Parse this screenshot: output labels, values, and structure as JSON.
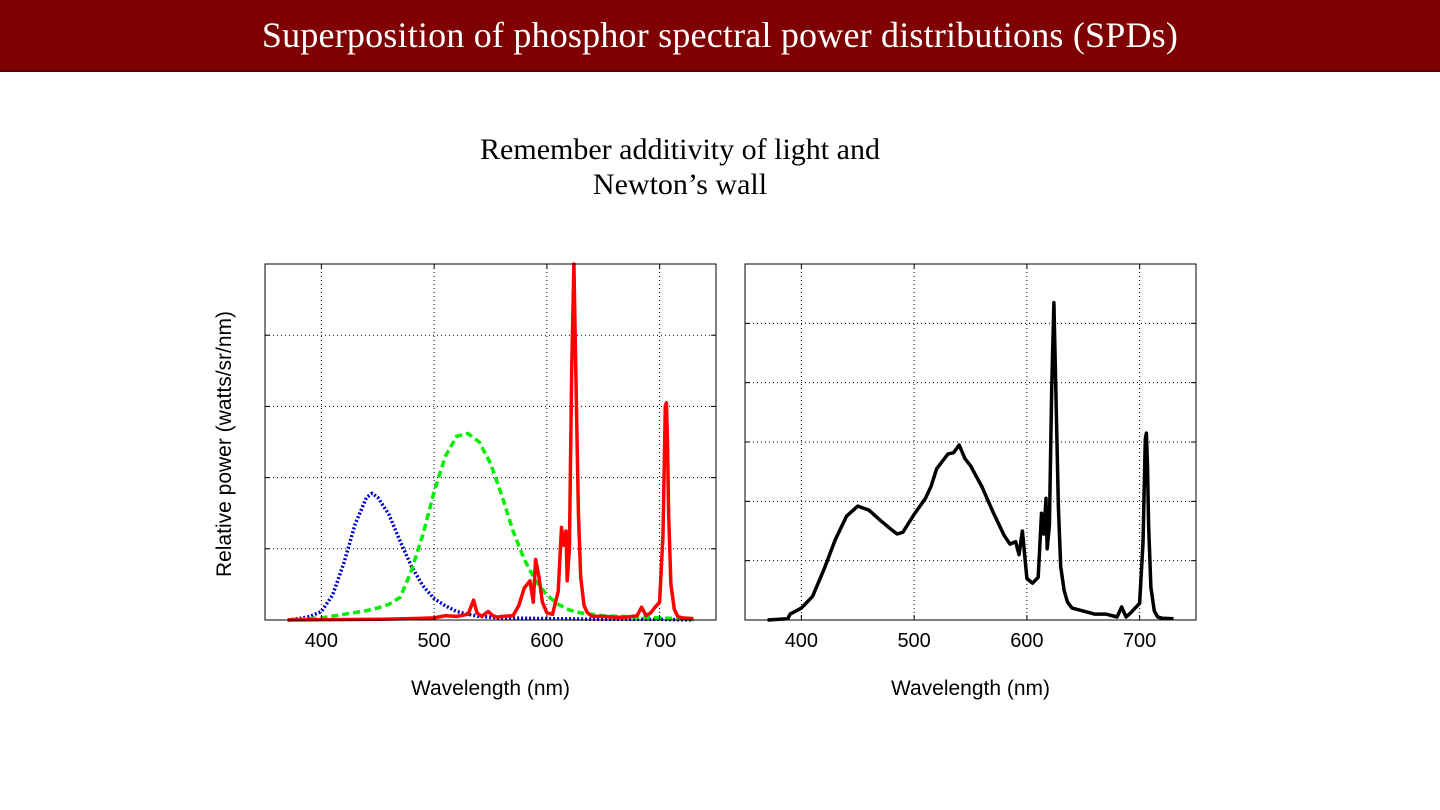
{
  "slide": {
    "title": "Superposition of phosphor spectral power distributions (SPDs)",
    "subtitle_lines": [
      "Remember additivity of light and",
      "Newton’s wall"
    ],
    "accent_color": "#7f0000"
  },
  "chart_data": [
    {
      "type": "line",
      "xlabel": "Wavelength (nm)",
      "ylabel": "Relative power (watts/sr/nm)",
      "xlim": [
        350,
        750
      ],
      "ylim": [
        0,
        5
      ],
      "xticks": [
        400,
        500,
        600,
        700
      ],
      "yticks": [
        1,
        2,
        3,
        4
      ],
      "show_ytick_labels": false,
      "grid": true,
      "series": [
        {
          "color": "#0000cc",
          "style": "dotted",
          "x": [
            370,
            380,
            390,
            400,
            410,
            420,
            430,
            440,
            445,
            450,
            460,
            470,
            480,
            490,
            500,
            510,
            520,
            530,
            540,
            560,
            600,
            650,
            700,
            730
          ],
          "y": [
            0.0,
            0.02,
            0.05,
            0.12,
            0.35,
            0.8,
            1.35,
            1.72,
            1.78,
            1.72,
            1.48,
            1.1,
            0.75,
            0.48,
            0.3,
            0.2,
            0.12,
            0.08,
            0.05,
            0.03,
            0.02,
            0.01,
            0.01,
            0.0
          ]
        },
        {
          "color": "#00ee00",
          "style": "dashed",
          "x": [
            370,
            400,
            420,
            440,
            450,
            460,
            470,
            480,
            490,
            500,
            510,
            520,
            530,
            540,
            550,
            560,
            570,
            580,
            590,
            600,
            610,
            620,
            630,
            650,
            700,
            730
          ],
          "y": [
            0.0,
            0.03,
            0.08,
            0.13,
            0.17,
            0.22,
            0.32,
            0.7,
            1.2,
            1.8,
            2.3,
            2.58,
            2.62,
            2.5,
            2.2,
            1.75,
            1.25,
            0.85,
            0.55,
            0.35,
            0.22,
            0.14,
            0.1,
            0.06,
            0.03,
            0.01
          ]
        },
        {
          "color": "#ff0000",
          "style": "solid",
          "x": [
            370,
            450,
            480,
            500,
            510,
            520,
            530,
            535,
            538,
            542,
            548,
            552,
            556,
            560,
            570,
            575,
            580,
            585,
            588,
            590,
            593,
            596,
            600,
            605,
            610,
            613,
            615,
            617,
            618,
            620,
            622,
            624,
            626,
            628,
            630,
            633,
            636,
            640,
            650,
            660,
            670,
            680,
            684,
            688,
            692,
            696,
            700,
            703,
            705,
            706,
            707,
            708,
            710,
            713,
            716,
            720,
            730
          ],
          "y": [
            0.0,
            0.01,
            0.02,
            0.03,
            0.06,
            0.05,
            0.08,
            0.28,
            0.1,
            0.05,
            0.12,
            0.06,
            0.04,
            0.05,
            0.06,
            0.2,
            0.45,
            0.55,
            0.25,
            0.85,
            0.6,
            0.25,
            0.1,
            0.08,
            0.4,
            1.3,
            1.05,
            1.25,
            0.55,
            1.0,
            3.5,
            5.0,
            3.2,
            1.5,
            0.6,
            0.2,
            0.1,
            0.05,
            0.05,
            0.04,
            0.04,
            0.06,
            0.18,
            0.06,
            0.1,
            0.18,
            0.25,
            1.2,
            3.0,
            3.05,
            2.5,
            1.5,
            0.5,
            0.15,
            0.05,
            0.03,
            0.02
          ]
        }
      ]
    },
    {
      "type": "line",
      "xlabel": "Wavelength (nm)",
      "ylabel": "",
      "xlim": [
        350,
        750
      ],
      "ylim": [
        0,
        6
      ],
      "xticks": [
        400,
        500,
        600,
        700
      ],
      "yticks": [
        1,
        2,
        3,
        4,
        5
      ],
      "show_ytick_labels": false,
      "grid": true,
      "series": [
        {
          "color": "#000000",
          "style": "solid",
          "x": [
            370,
            388,
            390,
            400,
            410,
            420,
            430,
            440,
            450,
            460,
            470,
            480,
            485,
            490,
            500,
            510,
            515,
            520,
            530,
            535,
            540,
            545,
            550,
            560,
            570,
            580,
            585,
            590,
            593,
            596,
            600,
            605,
            610,
            613,
            615,
            617,
            618,
            620,
            622,
            624,
            626,
            628,
            630,
            633,
            636,
            640,
            650,
            660,
            670,
            680,
            684,
            688,
            692,
            696,
            700,
            703,
            705,
            706,
            707,
            708,
            710,
            713,
            716,
            720,
            730
          ],
          "y": [
            0.0,
            0.02,
            0.1,
            0.2,
            0.4,
            0.85,
            1.35,
            1.75,
            1.92,
            1.85,
            1.68,
            1.52,
            1.45,
            1.48,
            1.78,
            2.05,
            2.25,
            2.55,
            2.8,
            2.82,
            2.95,
            2.72,
            2.6,
            2.25,
            1.82,
            1.42,
            1.28,
            1.32,
            1.1,
            1.5,
            0.7,
            0.62,
            0.72,
            1.8,
            1.45,
            2.05,
            1.2,
            1.6,
            3.9,
            5.35,
            3.6,
            1.9,
            0.9,
            0.5,
            0.3,
            0.2,
            0.15,
            0.1,
            0.1,
            0.05,
            0.22,
            0.05,
            0.12,
            0.2,
            0.28,
            1.3,
            3.05,
            3.15,
            2.6,
            1.6,
            0.55,
            0.15,
            0.05,
            0.03,
            0.02
          ]
        }
      ]
    }
  ]
}
